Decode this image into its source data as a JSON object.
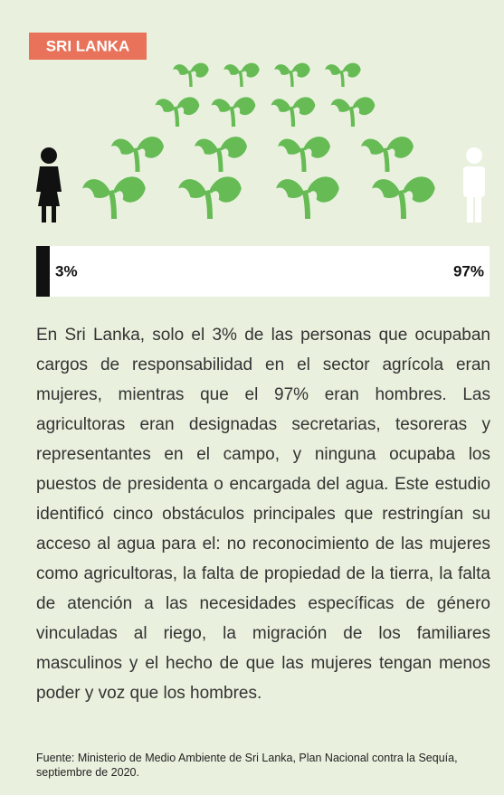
{
  "chart_data": {
    "type": "bar",
    "title": "SRI LANKA",
    "values": [
      3,
      97
    ],
    "value_labels": [
      "3%",
      "97%"
    ],
    "colors": [
      "#111111",
      "#ffffff"
    ],
    "xlim": [
      0,
      100
    ]
  },
  "body": "En Sri Lanka, solo el 3% de las personas que ocupaban cargos de responsabilidad en el sector agrícola eran mujeres, mientras que el 97% eran hombres. Las agricultoras eran designadas secretarias, tesoreras y representantes en el campo, y ninguna ocupaba los puestos de presidenta o encargada del agua. Este estudio identificó cinco obstáculos principales que restringían su acceso al agua para el: no reconocimiento de las mujeres como agricultoras, la falta de propiedad de la tierra, la falta de atención a las necesidades específicas de género vinculadas al riego, la migración de los familiares masculinos y el hecho de que las mujeres tengan menos poder y voz que los hombres.",
  "source": "Fuente: Ministerio de Medio Ambiente de Sri Lanka, Plan Nacional contra la Sequía, septiembre de 2020."
}
